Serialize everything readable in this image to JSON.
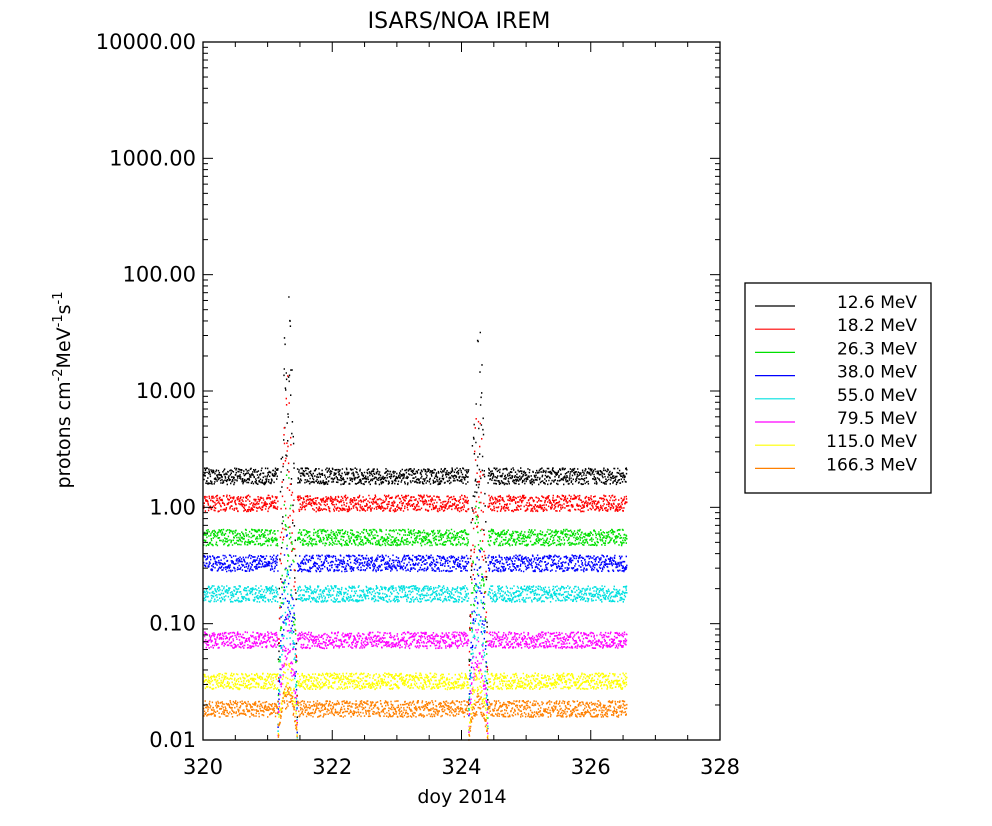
{
  "chart_data": {
    "type": "scatter",
    "title": "ISARS/NOA  IREM",
    "xlabel": "doy 2014",
    "ylabel": "protons cm",
    "ylabel_sup1": "-2",
    "ylabel_mid": "MeV",
    "ylabel_sup2": "-1",
    "ylabel_mid2": "s",
    "ylabel_sup3": "-1",
    "y_scale": "log",
    "xlim": [
      320,
      328
    ],
    "ylim": [
      0.01,
      10000
    ],
    "x_ticks": [
      {
        "value": 320,
        "label": "320"
      },
      {
        "value": 322,
        "label": "322"
      },
      {
        "value": 324,
        "label": "324"
      },
      {
        "value": 326,
        "label": "326"
      },
      {
        "value": 328,
        "label": "328"
      }
    ],
    "y_ticks": [
      {
        "value": 0.01,
        "label": "0.01"
      },
      {
        "value": 0.1,
        "label": "0.10"
      },
      {
        "value": 1,
        "label": "1.00"
      },
      {
        "value": 10,
        "label": "10.00"
      },
      {
        "value": 100,
        "label": "100.00"
      },
      {
        "value": 1000,
        "label": "1000.00"
      },
      {
        "value": 10000,
        "label": "10000.00"
      }
    ],
    "legend_position": "right, outside plot",
    "data_x_range": [
      320.0,
      326.55
    ],
    "series": [
      {
        "name": "12.6 MeV",
        "color": "#000000",
        "baseline": 1.85,
        "pass1_peak": 75,
        "pass2_peak": 42
      },
      {
        "name": "18.2 MeV",
        "color": "#ff0000",
        "baseline": 1.08,
        "pass1_peak": 14,
        "pass2_peak": 9
      },
      {
        "name": "26.3 MeV",
        "color": "#00e000",
        "baseline": 0.55,
        "pass1_peak": 2.0,
        "pass2_peak": 1.5
      },
      {
        "name": "38.0 MeV",
        "color": "#0000ff",
        "baseline": 0.33,
        "pass1_peak": 0.6,
        "pass2_peak": 0.5
      },
      {
        "name": "55.0 MeV",
        "color": "#00e0e0",
        "baseline": 0.18,
        "pass1_peak": 0.3,
        "pass2_peak": 0.25
      },
      {
        "name": "79.5 MeV",
        "color": "#ff00ff",
        "baseline": 0.072,
        "pass1_peak": 0.12,
        "pass2_peak": 0.1
      },
      {
        "name": "115.0 MeV",
        "color": "#ffff00",
        "baseline": 0.032,
        "pass1_peak": 0.05,
        "pass2_peak": 0.045
      },
      {
        "name": "166.3 MeV",
        "color": "#ff8000",
        "baseline": 0.0185,
        "pass1_peak": 0.03,
        "pass2_peak": 0.025
      }
    ],
    "radiation_belt_passes": [
      {
        "start": 321.15,
        "end": 321.45
      },
      {
        "start": 324.1,
        "end": 324.4
      }
    ]
  }
}
